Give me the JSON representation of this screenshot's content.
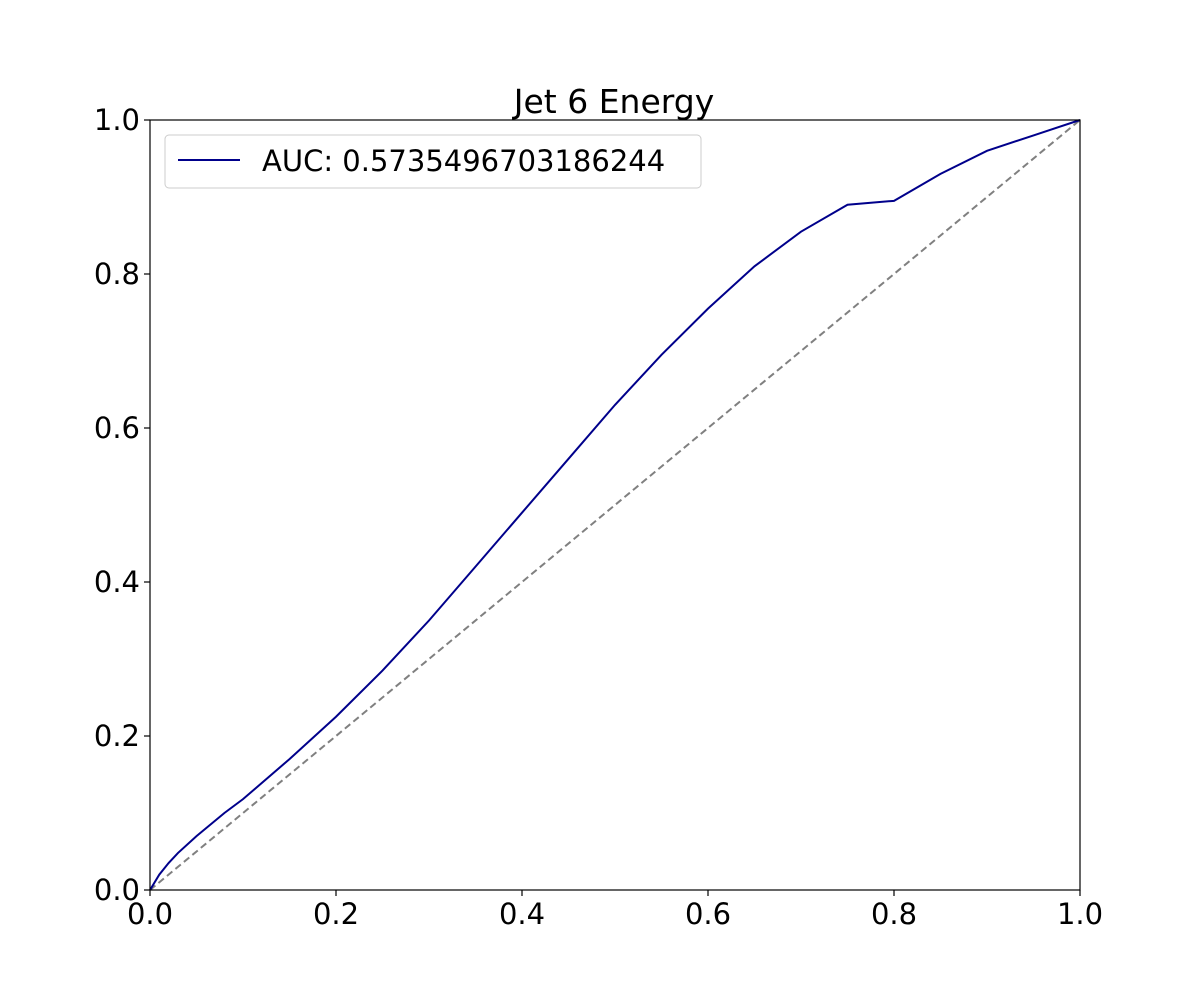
{
  "chart_data": {
    "type": "line",
    "title": "Jet 6 Energy",
    "xlabel": "",
    "ylabel": "",
    "xlim": [
      0.0,
      1.0
    ],
    "ylim": [
      0.0,
      1.0
    ],
    "x_ticks": [
      "0.0",
      "0.2",
      "0.4",
      "0.6",
      "0.8",
      "1.0"
    ],
    "y_ticks": [
      "0.0",
      "0.2",
      "0.4",
      "0.6",
      "0.8",
      "1.0"
    ],
    "grid": false,
    "legend_placement": "upper-left",
    "series": [
      {
        "name": "AUC: 0.5735496703186244",
        "color": "#00008b",
        "style": "solid",
        "x": [
          0.0,
          0.01,
          0.02,
          0.03,
          0.05,
          0.08,
          0.1,
          0.15,
          0.2,
          0.25,
          0.3,
          0.35,
          0.4,
          0.45,
          0.5,
          0.55,
          0.6,
          0.65,
          0.7,
          0.75,
          0.8,
          0.85,
          0.9,
          0.95,
          1.0
        ],
        "y": [
          0.0,
          0.02,
          0.035,
          0.048,
          0.07,
          0.1,
          0.118,
          0.17,
          0.225,
          0.285,
          0.35,
          0.42,
          0.49,
          0.56,
          0.63,
          0.695,
          0.755,
          0.81,
          0.855,
          0.89,
          0.895,
          0.93,
          0.96,
          0.98,
          1.0
        ]
      },
      {
        "name": "",
        "color": "#808080",
        "style": "dashed",
        "x": [
          0.0,
          1.0
        ],
        "y": [
          0.0,
          1.0
        ]
      }
    ]
  }
}
